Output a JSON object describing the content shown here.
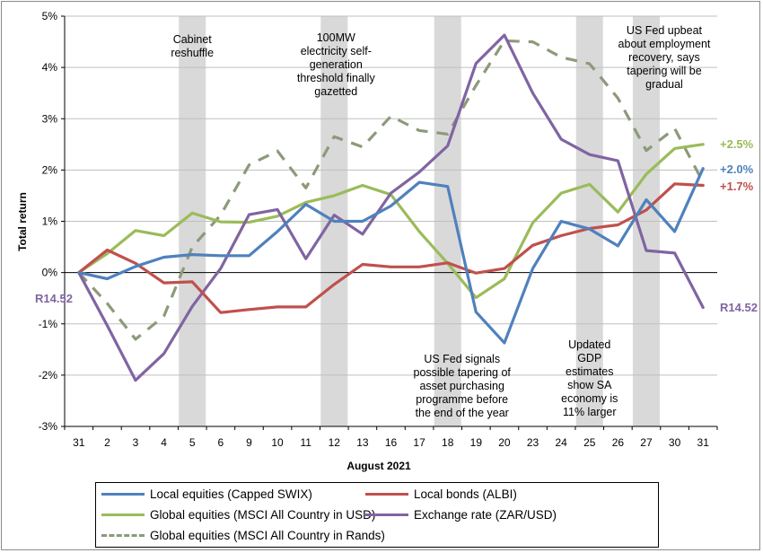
{
  "chart_data": {
    "type": "line",
    "title": "",
    "xlabel": "August 2021",
    "ylabel": "Total return",
    "ylim": [
      -3,
      5
    ],
    "yticks": [
      -3,
      -2,
      -1,
      0,
      1,
      2,
      3,
      4,
      5
    ],
    "ytick_labels": [
      "-3%",
      "-2%",
      "-1%",
      "0%",
      "1%",
      "2%",
      "3%",
      "4%",
      "5%"
    ],
    "grid": "horizontal",
    "legend": "bottom",
    "categories": [
      "31",
      "2",
      "3",
      "4",
      "5",
      "6",
      "9",
      "10",
      "11",
      "12",
      "13",
      "16",
      "17",
      "18",
      "19",
      "20",
      "23",
      "24",
      "25",
      "26",
      "27",
      "30",
      "31"
    ],
    "series": [
      {
        "name": "Local equities (Capped SWIX)",
        "color": "#4f81bd",
        "style": "solid",
        "values": [
          0,
          -0.12,
          0.12,
          0.3,
          0.35,
          0.33,
          0.33,
          0.8,
          1.33,
          1.0,
          1.0,
          1.3,
          1.76,
          1.68,
          -0.77,
          -1.37,
          0.08,
          1.0,
          0.85,
          0.52,
          1.42,
          0.8,
          2.03
        ]
      },
      {
        "name": "Local bonds (ALBI)",
        "color": "#c0504d",
        "style": "solid",
        "values": [
          0,
          0.44,
          0.18,
          -0.2,
          -0.18,
          -0.78,
          -0.72,
          -0.67,
          -0.67,
          -0.23,
          0.16,
          0.11,
          0.11,
          0.19,
          -0.01,
          0.08,
          0.53,
          0.72,
          0.86,
          0.93,
          1.22,
          1.73,
          1.7
        ]
      },
      {
        "name": "Global equities (MSCI All Country in USD)",
        "color": "#9bbb59",
        "style": "solid",
        "values": [
          0,
          0.37,
          0.82,
          0.72,
          1.16,
          0.99,
          0.98,
          1.1,
          1.37,
          1.5,
          1.7,
          1.52,
          0.8,
          0.18,
          -0.49,
          -0.12,
          0.97,
          1.55,
          1.72,
          1.18,
          1.92,
          2.42,
          2.5
        ]
      },
      {
        "name": "Exchange rate (ZAR/USD)",
        "color": "#8064a2",
        "style": "solid",
        "values": [
          0,
          -1.03,
          -2.1,
          -1.58,
          -0.66,
          0.08,
          1.13,
          1.23,
          0.27,
          1.12,
          0.75,
          1.55,
          1.96,
          2.47,
          4.08,
          4.63,
          3.5,
          2.6,
          2.3,
          2.18,
          0.43,
          0.38,
          -0.68
        ]
      },
      {
        "name": "Global equities (MSCI All Country in Rands)",
        "color": "#8c9a7a",
        "style": "dashed",
        "values": [
          0,
          -0.6,
          -1.3,
          -0.85,
          0.5,
          1.12,
          2.1,
          2.37,
          1.65,
          2.65,
          2.45,
          3.05,
          2.77,
          2.7,
          3.65,
          4.52,
          4.5,
          4.2,
          4.07,
          3.4,
          2.38,
          2.81,
          1.76
        ]
      }
    ],
    "shaded_days": [
      "5",
      "12",
      "18",
      "25",
      "27"
    ],
    "annotations": [
      {
        "lines": [
          "Cabinet",
          "reshuffle"
        ]
      },
      {
        "lines": [
          "100MW",
          "electricity self-",
          "generation",
          "threshold finally",
          "gazetted"
        ]
      },
      {
        "lines": [
          "US Fed signals",
          "possible tapering of",
          "asset purchasing",
          "programme before",
          "the end of the year"
        ]
      },
      {
        "lines": [
          "Updated",
          "GDP",
          "estimates",
          "show SA",
          "economy is",
          "11% larger"
        ]
      },
      {
        "lines": [
          "US Fed upbeat",
          "about employment",
          "recovery, says",
          "tapering will be",
          "gradual"
        ]
      }
    ],
    "end_labels": [
      {
        "text": "+2.5%",
        "color": "#9bbb59"
      },
      {
        "text": "+2.0%",
        "color": "#4f81bd"
      },
      {
        "text": "+1.7%",
        "color": "#c0504d"
      },
      {
        "text": "R14.52",
        "color": "#8064a2"
      }
    ],
    "start_label": {
      "text": "R14.52",
      "color": "#8064a2"
    }
  }
}
